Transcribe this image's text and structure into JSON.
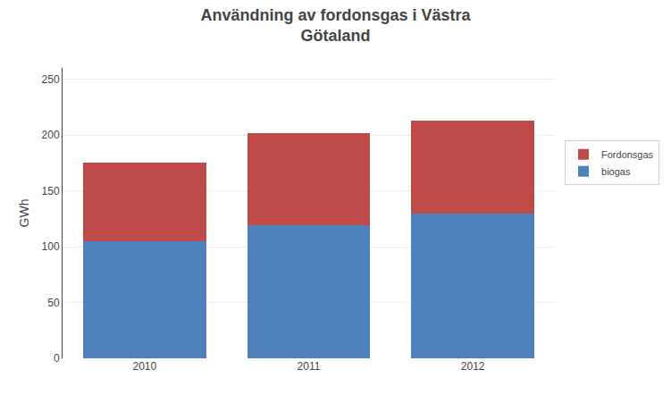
{
  "chart_data": {
    "type": "bar",
    "stacked": true,
    "title": "Användning av fordonsgas i Västra\nGötaland",
    "categories": [
      "2010",
      "2011",
      "2012"
    ],
    "series": [
      {
        "name": "biogas",
        "color": "#4F81BD",
        "values": [
          105,
          119,
          130
        ]
      },
      {
        "name": "Fordonsgas",
        "color": "#BE4B48",
        "values": [
          70,
          83,
          83
        ]
      }
    ],
    "ylabel": "GWh",
    "ylim": [
      0,
      260
    ],
    "yticks": [
      0,
      50,
      100,
      150,
      200,
      250
    ],
    "grid": true,
    "legend": "right"
  }
}
